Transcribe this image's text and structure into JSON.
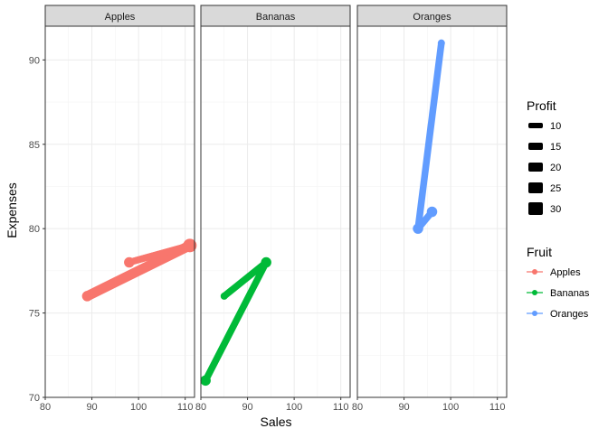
{
  "chart_data": {
    "type": "line",
    "facet_by": "Fruit",
    "xlabel": "Sales",
    "ylabel": "Expenses",
    "xlim": [
      80,
      112
    ],
    "ylim": [
      70,
      92
    ],
    "x_ticks": [
      80,
      90,
      100,
      110
    ],
    "y_ticks": [
      70,
      75,
      80,
      85,
      90
    ],
    "size_by": "Profit",
    "series": [
      {
        "name": "Apples",
        "color": "#F8766D",
        "points": [
          {
            "x": 89,
            "y": 76,
            "profit": 20
          },
          {
            "x": 111,
            "y": 79,
            "profit": 30
          },
          {
            "x": 98,
            "y": 78,
            "profit": 20
          },
          {
            "x": 111,
            "y": 79,
            "profit": 20
          }
        ]
      },
      {
        "name": "Bananas",
        "color": "#00BA38",
        "points": [
          {
            "x": 85,
            "y": 76,
            "profit": 10
          },
          {
            "x": 94,
            "y": 78,
            "profit": 20
          },
          {
            "x": 81,
            "y": 71,
            "profit": 20
          }
        ]
      },
      {
        "name": "Oranges",
        "color": "#619CFF",
        "points": [
          {
            "x": 98,
            "y": 91,
            "profit": 10
          },
          {
            "x": 93,
            "y": 80,
            "profit": 20
          },
          {
            "x": 96,
            "y": 81,
            "profit": 20
          }
        ]
      }
    ],
    "legend": {
      "placement": "right",
      "size": {
        "title": "Profit",
        "values": [
          10,
          15,
          20,
          25,
          30
        ]
      },
      "color": {
        "title": "Fruit",
        "entries": [
          "Apples",
          "Bananas",
          "Oranges"
        ]
      }
    }
  }
}
